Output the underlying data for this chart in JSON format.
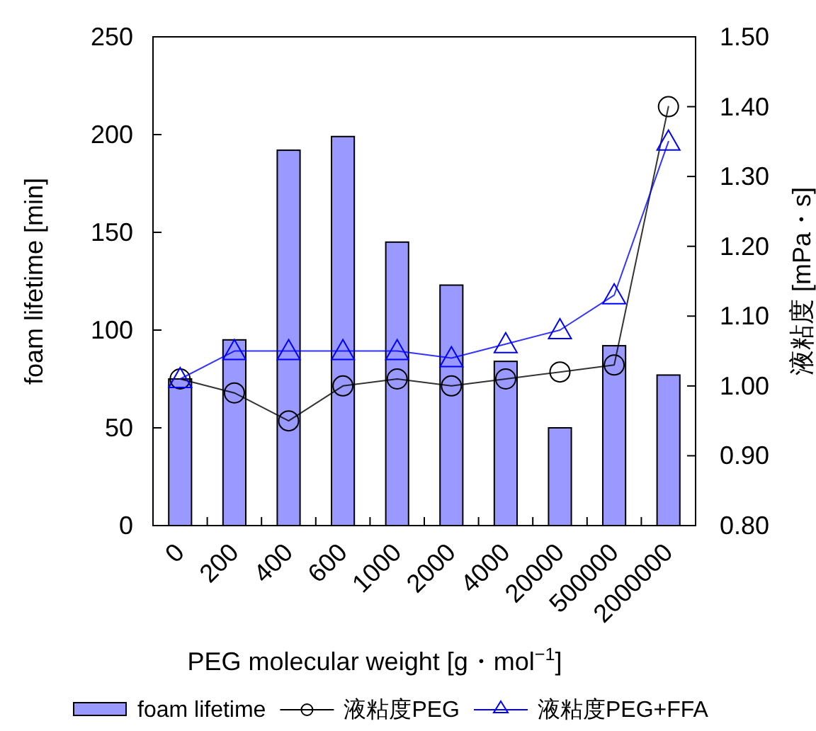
{
  "chart_data": {
    "type": "bar",
    "xlabel": "PEG molecular weight [g・mol$^{−1}$]",
    "ylabel": "foam lifetime [min]",
    "y2label": "液粘度 [mPa・s]",
    "categories": [
      "0",
      "200",
      "400",
      "600",
      "1000",
      "2000",
      "4000",
      "20000",
      "500000",
      "2000000"
    ],
    "series": [
      {
        "name": "foam lifetime",
        "color": "#9999ff",
        "values": [
          75,
          95,
          192,
          199,
          145,
          123,
          84,
          50,
          92,
          77
        ]
      },
      {
        "name": "液粘度PEG",
        "type": "line",
        "axis": "y2",
        "color": "#000000",
        "marker": "circle",
        "values": [
          1.01,
          0.99,
          0.95,
          1.0,
          1.01,
          1.0,
          1.01,
          1.02,
          1.03,
          1.4
        ]
      },
      {
        "name": "液粘度PEG+FFA",
        "type": "line",
        "axis": "y2",
        "color": "#0000ff",
        "marker": "triangle",
        "values": [
          1.01,
          1.05,
          1.05,
          1.05,
          1.05,
          1.04,
          1.06,
          1.08,
          1.13,
          1.35
        ]
      }
    ],
    "ylim": [
      0,
      250
    ],
    "yticks": [
      0,
      50,
      100,
      150,
      200,
      250
    ],
    "y2lim": [
      0.8,
      1.5
    ],
    "y2ticks": [
      {
        "value": 0.8,
        "label": "0.80"
      },
      {
        "value": 0.9,
        "label": "0.90"
      },
      {
        "value": 1.0,
        "label": "1.00"
      },
      {
        "value": 1.1,
        "label": "1.10"
      },
      {
        "value": 1.2,
        "label": "1.20"
      },
      {
        "value": 1.3,
        "label": "1.30"
      },
      {
        "value": 1.4,
        "label": "1.40"
      },
      {
        "value": 1.5,
        "label": "1.50"
      }
    ],
    "legend": "bottom",
    "grid": false
  }
}
